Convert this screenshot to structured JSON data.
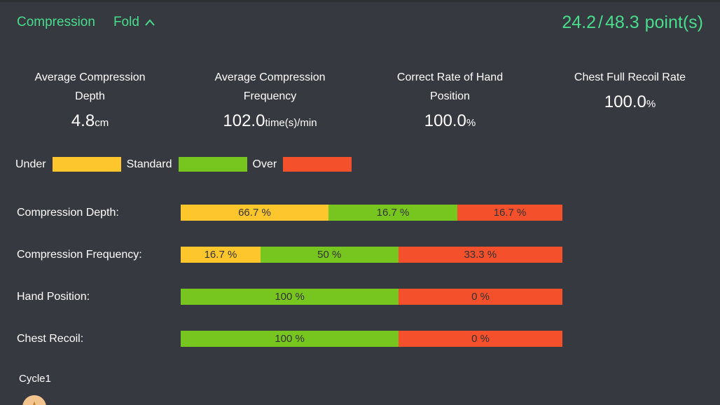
{
  "panel": {
    "title": "Compression",
    "fold_label": "Fold",
    "score": {
      "earned": "24.2",
      "separator": "/",
      "total": "48.3",
      "unit": "point(s)"
    }
  },
  "stats": [
    {
      "label": "Average Compression Depth",
      "value": "4.8",
      "unit": "cm"
    },
    {
      "label": "Average Compression Frequency",
      "value": "102.0",
      "unit": "time(s)/min"
    },
    {
      "label": "Correct Rate of Hand Position",
      "value": "100.0",
      "unit": "%"
    },
    {
      "label": "Chest Full Recoil Rate",
      "value": "100.0",
      "unit": "%"
    }
  ],
  "legend": [
    {
      "label": "Under",
      "kind": "under"
    },
    {
      "label": "Standard",
      "kind": "standard"
    },
    {
      "label": "Over",
      "kind": "over"
    }
  ],
  "colors": {
    "under": "#fdc62d",
    "standard": "#77c51f",
    "over": "#f4502c",
    "accent_green": "#48dd8d",
    "background": "#36393f",
    "bar_text": "#333333",
    "star_badge_bg": "#f3c48e",
    "star_badge_star": "#c0802f"
  },
  "rows": [
    {
      "label": "Compression Depth:",
      "segments": [
        {
          "kind": "under",
          "label": "66.7 %",
          "value": 66.7,
          "width_pct": 38.7
        },
        {
          "kind": "standard",
          "label": "16.7 %",
          "value": 16.7,
          "width_pct": 33.8
        },
        {
          "kind": "over",
          "label": "16.7 %",
          "value": 16.7,
          "width_pct": 27.5
        }
      ]
    },
    {
      "label": "Compression Frequency:",
      "segments": [
        {
          "kind": "under",
          "label": "16.7 %",
          "value": 16.7,
          "width_pct": 20.9
        },
        {
          "kind": "standard",
          "label": "50 %",
          "value": 50,
          "width_pct": 36.1
        },
        {
          "kind": "over",
          "label": "33.3 %",
          "value": 33.3,
          "width_pct": 43.0
        }
      ]
    },
    {
      "label": "Hand Position:",
      "segments": [
        {
          "kind": "standard",
          "label": "100 %",
          "value": 100,
          "width_pct": 57.1
        },
        {
          "kind": "over",
          "label": "0 %",
          "value": 0,
          "width_pct": 42.9
        }
      ]
    },
    {
      "label": "Chest Recoil:",
      "segments": [
        {
          "kind": "standard",
          "label": "100 %",
          "value": 100,
          "width_pct": 57.1
        },
        {
          "kind": "over",
          "label": "0 %",
          "value": 0,
          "width_pct": 42.9
        }
      ]
    }
  ],
  "cycle": {
    "label": "Cycle1",
    "star_icon": "★"
  },
  "chart_data": {
    "type": "bar",
    "orientation": "horizontal",
    "stacked": true,
    "value_labels_shown": true,
    "categories": [
      "Compression Depth",
      "Compression Frequency",
      "Hand Position",
      "Chest Recoil"
    ],
    "series": [
      {
        "name": "Under",
        "values": [
          66.7,
          16.7,
          null,
          null
        ]
      },
      {
        "name": "Standard",
        "values": [
          16.7,
          50,
          100,
          100
        ]
      },
      {
        "name": "Over",
        "values": [
          16.7,
          33.3,
          0,
          0
        ]
      }
    ],
    "legend_position": "top-left",
    "note_displayed_segment_width_pct": {
      "Compression Depth": [
        38.7,
        33.8,
        27.5
      ],
      "Compression Frequency": [
        20.9,
        36.1,
        43.0
      ],
      "Hand Position": [
        null,
        57.1,
        42.9
      ],
      "Chest Recoil": [
        null,
        57.1,
        42.9
      ]
    }
  }
}
